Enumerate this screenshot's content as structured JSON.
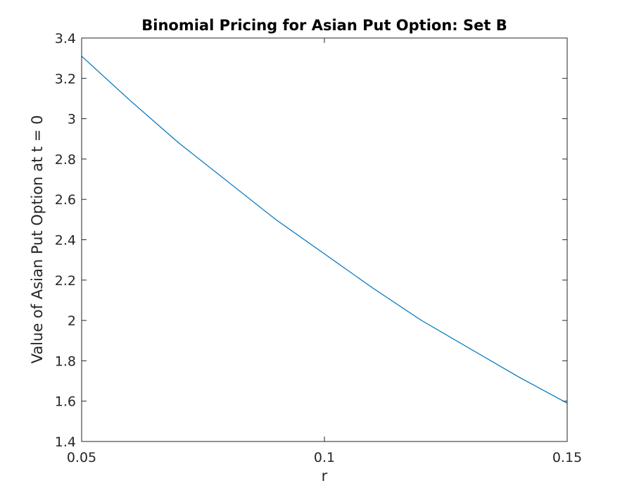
{
  "chart_data": {
    "type": "line",
    "title": "Binomial Pricing for Asian Put Option: Set B",
    "xlabel": "r",
    "ylabel": "Value of Asian Put Option at t = 0",
    "xlim": [
      0.05,
      0.15
    ],
    "ylim": [
      1.4,
      3.4
    ],
    "x_ticks": [
      0.05,
      0.1,
      0.15
    ],
    "x_tick_labels": [
      "0.05",
      "0.1",
      "0.15"
    ],
    "y_ticks": [
      1.4,
      1.6,
      1.8,
      2.0,
      2.2,
      2.4,
      2.6,
      2.8,
      3.0,
      3.2,
      3.4
    ],
    "y_tick_labels": [
      "1.4",
      "1.6",
      "1.8",
      "2",
      "2.2",
      "2.4",
      "2.6",
      "2.8",
      "3",
      "3.2",
      "3.4"
    ],
    "grid": false,
    "legend": false,
    "series": [
      {
        "color": "#0072bd",
        "x": [
          0.05,
          0.06,
          0.07,
          0.08,
          0.09,
          0.1,
          0.11,
          0.12,
          0.13,
          0.14,
          0.15
        ],
        "y": [
          3.31,
          3.09,
          2.88,
          2.69,
          2.5,
          2.33,
          2.16,
          2.0,
          1.86,
          1.72,
          1.59
        ]
      }
    ]
  }
}
